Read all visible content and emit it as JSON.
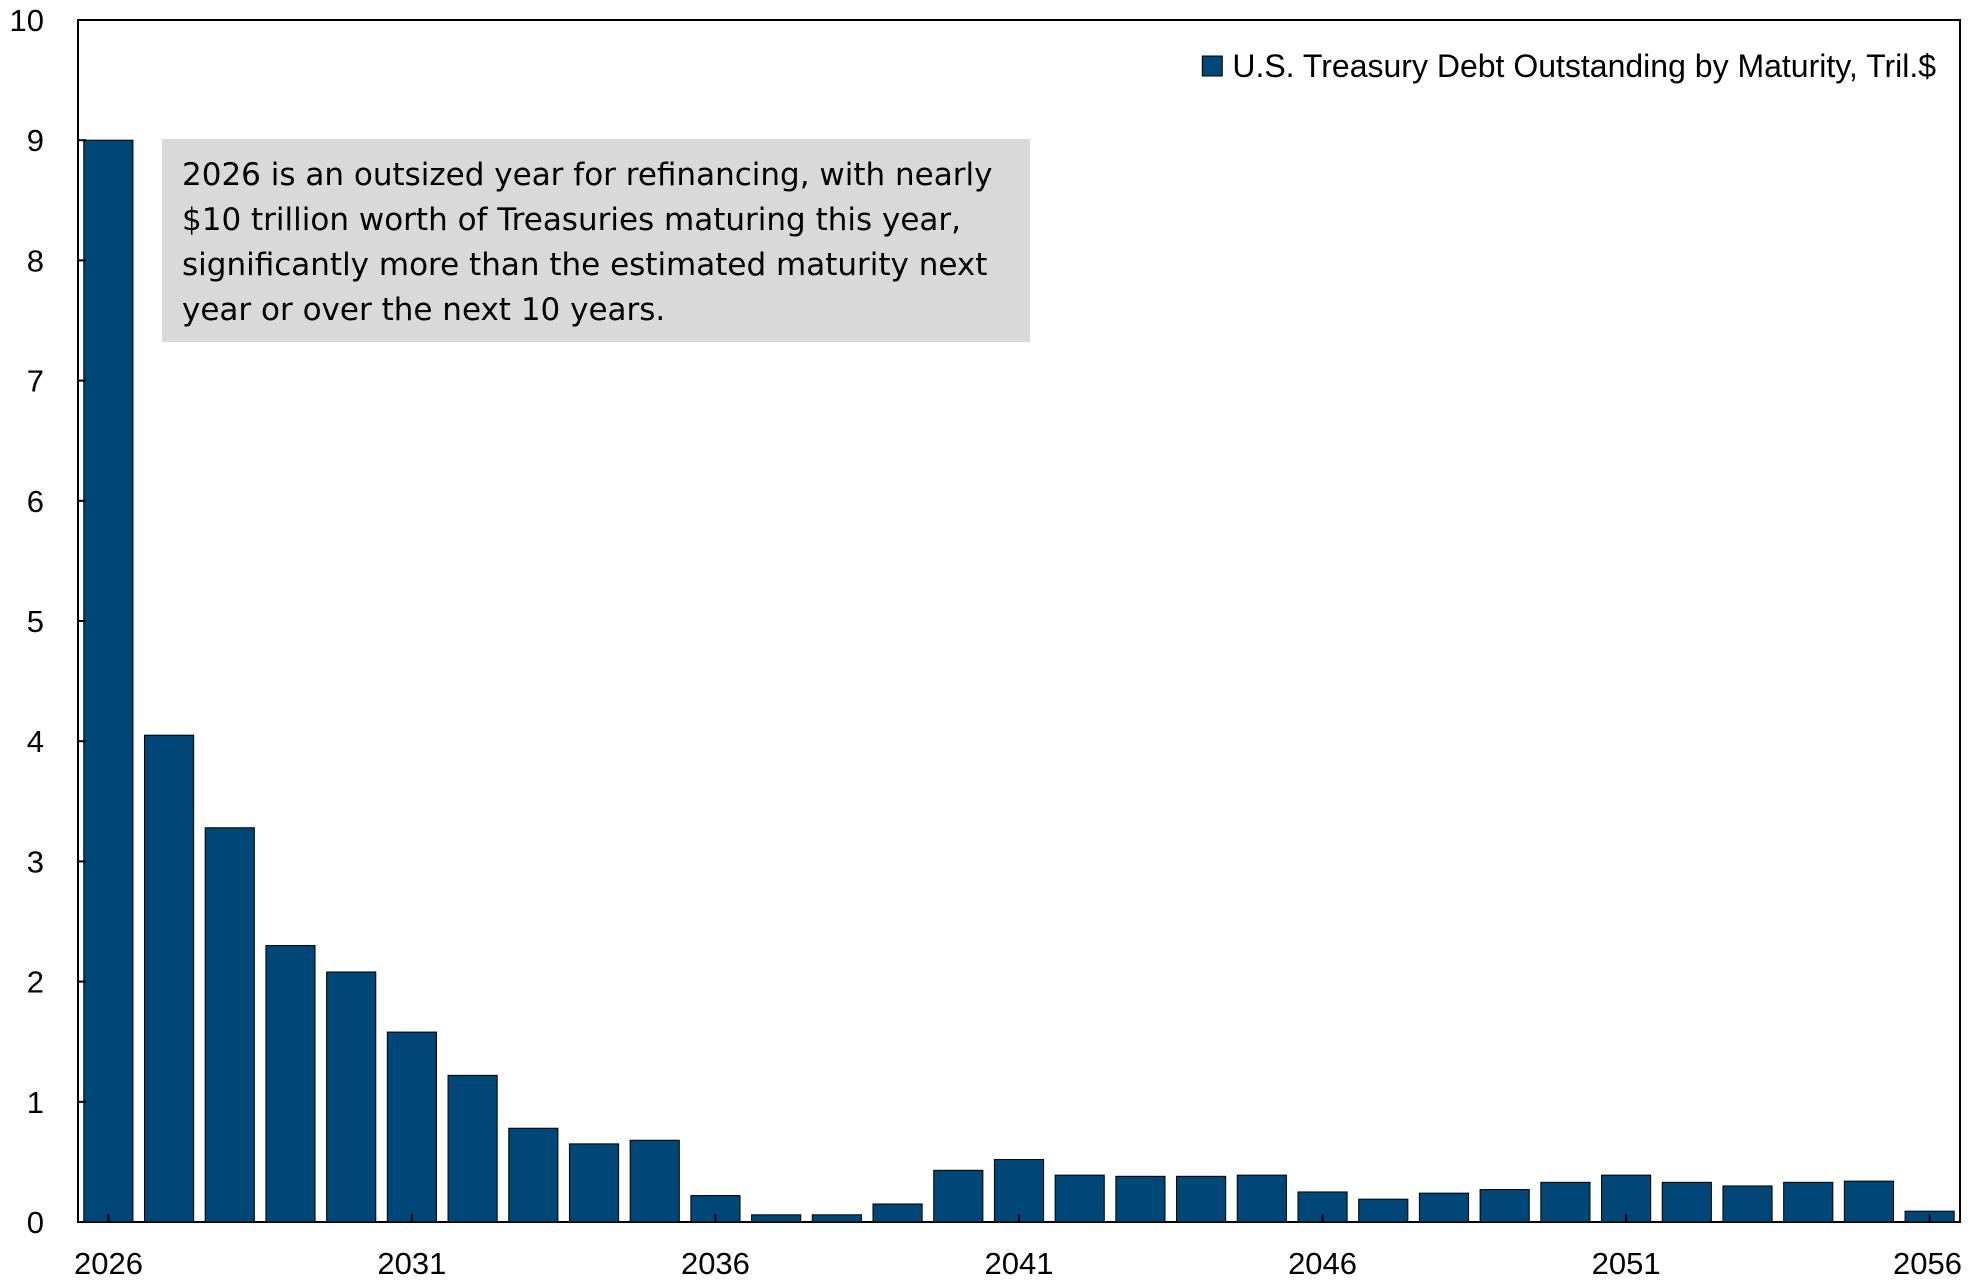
{
  "chart_data": {
    "type": "bar",
    "title": "",
    "xlabel": "",
    "ylabel": "",
    "ylim": [
      0,
      10
    ],
    "yticks": [
      "0",
      "1",
      "2",
      "3",
      "4",
      "5",
      "6",
      "7",
      "8",
      "9",
      "10"
    ],
    "xtick_labels": [
      "2026",
      "2031",
      "2036",
      "2041",
      "2046",
      "2051",
      "2056"
    ],
    "categories": [
      "2026",
      "2027",
      "2028",
      "2029",
      "2030",
      "2031",
      "2032",
      "2033",
      "2034",
      "2035",
      "2036",
      "2037",
      "2038",
      "2039",
      "2040",
      "2041",
      "2042",
      "2043",
      "2044",
      "2045",
      "2046",
      "2047",
      "2048",
      "2049",
      "2050",
      "2051",
      "2052",
      "2053",
      "2054",
      "2055",
      "2056"
    ],
    "series": [
      {
        "name": "U.S. Treasury Debt Outstanding by Maturity, Tril.$",
        "color": "#004676",
        "values": [
          9.0,
          4.05,
          3.28,
          2.3,
          2.08,
          1.58,
          1.22,
          0.78,
          0.65,
          0.68,
          0.22,
          0.06,
          0.06,
          0.15,
          0.43,
          0.52,
          0.39,
          0.38,
          0.38,
          0.39,
          0.25,
          0.19,
          0.24,
          0.27,
          0.33,
          0.39,
          0.33,
          0.3,
          0.33,
          0.34,
          0.09
        ]
      }
    ],
    "grid": false,
    "legend_position": "top-right",
    "annotation": {
      "text": "2026 is an outsized year for refinancing, with nearly $10 trillion worth of Treasuries maturing this year, significantly more than the estimated maturity next year or over the next 10 years.",
      "background": "#d9d9d9"
    }
  }
}
